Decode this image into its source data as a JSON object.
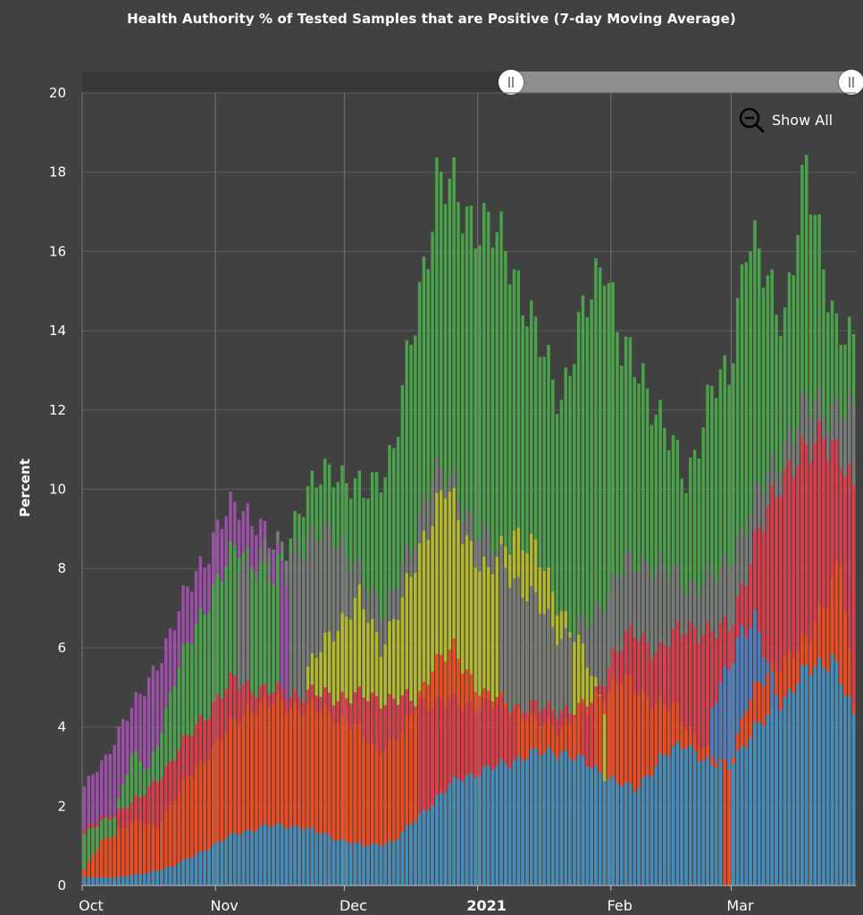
{
  "chart_data": {
    "type": "bar",
    "stacked": false,
    "title": "Health Authority % of Tested Samples that are Positive (7-day Moving Average)",
    "ylabel": "Percent",
    "xlabel": "",
    "ylim": [
      0,
      20
    ],
    "yticks": [
      0,
      2,
      4,
      6,
      8,
      10,
      12,
      14,
      16,
      18,
      20
    ],
    "x_tick_labels": [
      {
        "label": "Oct",
        "date": "2020-10-01",
        "bold": false
      },
      {
        "label": "Nov",
        "date": "2020-11-01",
        "bold": false
      },
      {
        "label": "Dec",
        "date": "2020-12-01",
        "bold": false
      },
      {
        "label": "2021",
        "date": "2021-01-01",
        "bold": true
      },
      {
        "label": "Feb",
        "date": "2021-02-01",
        "bold": false
      },
      {
        "label": "Mar",
        "date": "2021-03-01",
        "bold": false
      }
    ],
    "grid": true,
    "x_range": [
      "2020-10-01",
      "2021-03-29"
    ],
    "series": [
      {
        "color": "#4aa34a",
        "keyframes": [
          {
            "date": "2020-10-01",
            "value": 1.3
          },
          {
            "date": "2020-10-08",
            "value": 1.8
          },
          {
            "date": "2020-10-12",
            "value": 3.3
          },
          {
            "date": "2020-10-16",
            "value": 2.9
          },
          {
            "date": "2020-10-22",
            "value": 5.2
          },
          {
            "date": "2020-10-29",
            "value": 7.1
          },
          {
            "date": "2020-11-06",
            "value": 8.6
          },
          {
            "date": "2020-11-14",
            "value": 7.6
          },
          {
            "date": "2020-11-20",
            "value": 9.6
          },
          {
            "date": "2020-11-28",
            "value": 10.6
          },
          {
            "date": "2020-12-05",
            "value": 9.8
          },
          {
            "date": "2020-12-12",
            "value": 11.0
          },
          {
            "date": "2020-12-18",
            "value": 15.0
          },
          {
            "date": "2020-12-22",
            "value": 17.8
          },
          {
            "date": "2020-12-27",
            "value": 17.3
          },
          {
            "date": "2021-01-02",
            "value": 16.6
          },
          {
            "date": "2021-01-08",
            "value": 16.0
          },
          {
            "date": "2021-01-14",
            "value": 13.8
          },
          {
            "date": "2021-01-20",
            "value": 12.4
          },
          {
            "date": "2021-01-26",
            "value": 14.6
          },
          {
            "date": "2021-01-30",
            "value": 16.1
          },
          {
            "date": "2021-02-03",
            "value": 13.4
          },
          {
            "date": "2021-02-08",
            "value": 12.9
          },
          {
            "date": "2021-02-14",
            "value": 11.2
          },
          {
            "date": "2021-02-18",
            "value": 10.3
          },
          {
            "date": "2021-02-24",
            "value": 12.4
          },
          {
            "date": "2021-02-28",
            "value": 13.0
          },
          {
            "date": "2021-03-04",
            "value": 16.4
          },
          {
            "date": "2021-03-09",
            "value": 15.2
          },
          {
            "date": "2021-03-13",
            "value": 14.5
          },
          {
            "date": "2021-03-18",
            "value": 17.9
          },
          {
            "date": "2021-03-22",
            "value": 16.0
          },
          {
            "date": "2021-03-25",
            "value": 14.0
          },
          {
            "date": "2021-03-29",
            "value": 13.5
          }
        ]
      },
      {
        "color": "#9c4fa6",
        "keyframes": [
          {
            "date": "2020-10-01",
            "value": 2.5
          },
          {
            "date": "2020-10-06",
            "value": 3.2
          },
          {
            "date": "2020-10-10",
            "value": 4.2
          },
          {
            "date": "2020-10-15",
            "value": 4.9
          },
          {
            "date": "2020-10-21",
            "value": 6.4
          },
          {
            "date": "2020-10-27",
            "value": 7.9
          },
          {
            "date": "2020-11-02",
            "value": 9.2
          },
          {
            "date": "2020-11-06",
            "value": 9.6
          },
          {
            "date": "2020-11-10",
            "value": 9.3
          },
          {
            "date": "2020-11-14",
            "value": 8.4
          },
          {
            "date": "2020-11-17",
            "value": 7.9
          }
        ]
      },
      {
        "color": "#7a7a7a",
        "keyframes": [
          {
            "date": "2020-11-06",
            "value": 8.2
          },
          {
            "date": "2020-11-14",
            "value": 8.5
          },
          {
            "date": "2020-11-22",
            "value": 8.6
          },
          {
            "date": "2020-11-28",
            "value": 9.0
          },
          {
            "date": "2020-12-05",
            "value": 7.6
          },
          {
            "date": "2020-12-10",
            "value": 7.0
          },
          {
            "date": "2020-12-16",
            "value": 8.4
          },
          {
            "date": "2020-12-21",
            "value": 10.6
          },
          {
            "date": "2020-12-25",
            "value": 10.1
          },
          {
            "date": "2021-01-06",
            "value": 8.2
          },
          {
            "date": "2021-01-20",
            "value": 6.3
          },
          {
            "date": "2021-01-26",
            "value": 6.6
          },
          {
            "date": "2021-02-03",
            "value": 8.0
          },
          {
            "date": "2021-02-10",
            "value": 8.2
          },
          {
            "date": "2021-02-18",
            "value": 7.6
          },
          {
            "date": "2021-02-26",
            "value": 7.8
          },
          {
            "date": "2021-03-04",
            "value": 9.2
          },
          {
            "date": "2021-03-12",
            "value": 11.0
          },
          {
            "date": "2021-03-20",
            "value": 12.3
          },
          {
            "date": "2021-03-29",
            "value": 11.8
          }
        ]
      },
      {
        "color": "#b5b82a",
        "keyframes": [
          {
            "date": "2020-11-22",
            "value": 5.4
          },
          {
            "date": "2020-11-28",
            "value": 6.5
          },
          {
            "date": "2020-12-04",
            "value": 7.2
          },
          {
            "date": "2020-12-09",
            "value": 6.1
          },
          {
            "date": "2020-12-14",
            "value": 7.1
          },
          {
            "date": "2020-12-20",
            "value": 9.2
          },
          {
            "date": "2020-12-24",
            "value": 10.0
          },
          {
            "date": "2020-12-28",
            "value": 9.0
          },
          {
            "date": "2021-01-03",
            "value": 7.8
          },
          {
            "date": "2021-01-09",
            "value": 9.0
          },
          {
            "date": "2021-01-14",
            "value": 8.4
          },
          {
            "date": "2021-01-20",
            "value": 7.0
          },
          {
            "date": "2021-01-26",
            "value": 5.6
          },
          {
            "date": "2021-01-30",
            "value": 4.6
          }
        ]
      },
      {
        "color": "#e0394a",
        "keyframes": [
          {
            "date": "2020-10-01",
            "value": 1.4
          },
          {
            "date": "2020-10-07",
            "value": 1.8
          },
          {
            "date": "2020-10-14",
            "value": 2.2
          },
          {
            "date": "2020-10-21",
            "value": 3.1
          },
          {
            "date": "2020-10-28",
            "value": 4.2
          },
          {
            "date": "2020-11-05",
            "value": 5.2
          },
          {
            "date": "2020-11-12",
            "value": 4.9
          },
          {
            "date": "2021-01-26",
            "value": 4.4
          },
          {
            "date": "2021-02-01",
            "value": 5.8
          },
          {
            "date": "2021-02-06",
            "value": 6.4
          },
          {
            "date": "2021-02-12",
            "value": 5.9
          },
          {
            "date": "2021-02-18",
            "value": 6.6
          },
          {
            "date": "2021-02-24",
            "value": 6.3
          },
          {
            "date": "2021-02-28",
            "value": 6.6
          },
          {
            "date": "2021-03-06",
            "value": 8.5
          },
          {
            "date": "2021-03-12",
            "value": 10.4
          },
          {
            "date": "2021-03-18",
            "value": 10.8
          },
          {
            "date": "2021-03-22",
            "value": 11.6
          },
          {
            "date": "2021-03-26",
            "value": 10.7
          },
          {
            "date": "2021-03-29",
            "value": 9.8
          }
        ]
      },
      {
        "color": "#f04a1e",
        "keyframes": [
          {
            "date": "2020-10-01",
            "value": 0.4
          },
          {
            "date": "2020-10-05",
            "value": 1.1
          },
          {
            "date": "2020-10-12",
            "value": 1.6
          },
          {
            "date": "2020-10-18",
            "value": 1.5
          },
          {
            "date": "2020-10-25",
            "value": 2.7
          },
          {
            "date": "2020-11-01",
            "value": 3.6
          },
          {
            "date": "2020-11-08",
            "value": 4.5
          },
          {
            "date": "2020-11-16",
            "value": 4.6
          },
          {
            "date": "2020-11-25",
            "value": 4.4
          },
          {
            "date": "2020-12-02",
            "value": 4.1
          },
          {
            "date": "2020-12-08",
            "value": 3.4
          },
          {
            "date": "2020-12-14",
            "value": 3.8
          },
          {
            "date": "2020-12-21",
            "value": 5.6
          },
          {
            "date": "2020-12-26",
            "value": 5.9
          },
          {
            "date": "2021-01-02",
            "value": 4.8
          },
          {
            "date": "2021-01-08",
            "value": 4.6
          },
          {
            "date": "2021-01-14",
            "value": 4.1
          },
          {
            "date": "2021-01-20",
            "value": 4.0
          },
          {
            "date": "2021-01-26",
            "value": 4.6
          },
          {
            "date": "2021-02-03",
            "value": 5.2
          },
          {
            "date": "2021-02-10",
            "value": 4.7
          },
          {
            "date": "2021-02-16",
            "value": 4.4
          },
          {
            "date": "2021-02-20",
            "value": 3.8
          },
          {
            "date": "2021-02-24",
            "value": 3.2
          },
          {
            "date": "2021-02-28",
            "value": 3.0
          },
          {
            "date": "2021-03-04",
            "value": 4.6
          },
          {
            "date": "2021-03-12",
            "value": 5.7
          },
          {
            "date": "2021-03-18",
            "value": 6.1
          },
          {
            "date": "2021-03-22",
            "value": 7.2
          },
          {
            "date": "2021-03-26",
            "value": 8.2
          },
          {
            "date": "2021-03-29",
            "value": 4.4
          }
        ]
      },
      {
        "color": "#4a7fc1",
        "keyframes": [
          {
            "date": "2021-02-24",
            "value": 4.4
          },
          {
            "date": "2021-02-28",
            "value": 5.6
          },
          {
            "date": "2021-03-03",
            "value": 6.5
          },
          {
            "date": "2021-03-06",
            "value": 6.6
          },
          {
            "date": "2021-03-10",
            "value": 5.2
          },
          {
            "date": "2021-03-12",
            "value": 4.7
          }
        ]
      },
      {
        "color": "#3d8fc0",
        "keyframes": [
          {
            "date": "2020-10-01",
            "value": 0.2
          },
          {
            "date": "2020-10-08",
            "value": 0.2
          },
          {
            "date": "2020-10-15",
            "value": 0.3
          },
          {
            "date": "2020-10-22",
            "value": 0.5
          },
          {
            "date": "2020-10-29",
            "value": 0.9
          },
          {
            "date": "2020-11-05",
            "value": 1.3
          },
          {
            "date": "2020-11-12",
            "value": 1.5
          },
          {
            "date": "2020-11-20",
            "value": 1.5
          },
          {
            "date": "2020-11-28",
            "value": 1.2
          },
          {
            "date": "2020-12-05",
            "value": 1.0
          },
          {
            "date": "2020-12-12",
            "value": 1.1
          },
          {
            "date": "2020-12-20",
            "value": 2.0
          },
          {
            "date": "2020-12-27",
            "value": 2.7
          },
          {
            "date": "2021-01-05",
            "value": 3.0
          },
          {
            "date": "2021-01-12",
            "value": 3.3
          },
          {
            "date": "2021-01-20",
            "value": 3.4
          },
          {
            "date": "2021-01-27",
            "value": 3.0
          },
          {
            "date": "2021-02-02",
            "value": 2.6
          },
          {
            "date": "2021-02-06",
            "value": 2.4
          },
          {
            "date": "2021-02-12",
            "value": 3.2
          },
          {
            "date": "2021-02-18",
            "value": 3.6
          },
          {
            "date": "2021-02-24",
            "value": 3.0
          },
          {
            "date": "2021-02-28",
            "value": 3.1
          },
          {
            "date": "2021-03-06",
            "value": 3.9
          },
          {
            "date": "2021-03-12",
            "value": 4.6
          },
          {
            "date": "2021-03-18",
            "value": 5.4
          },
          {
            "date": "2021-03-24",
            "value": 5.8
          },
          {
            "date": "2021-03-29",
            "value": 4.2
          }
        ]
      }
    ]
  },
  "controls": {
    "show_all_label": "Show All",
    "range_selector": {
      "start": 0.55,
      "end": 1.0
    }
  },
  "colors": {
    "background": "#414141",
    "grid": "#5e5e5e",
    "text": "#ffffff"
  }
}
